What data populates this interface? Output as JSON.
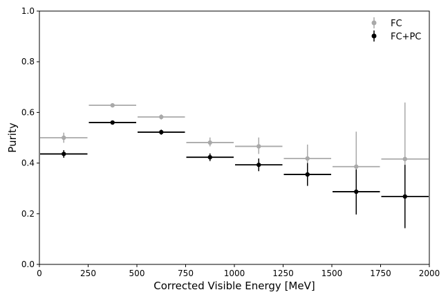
{
  "chart_data": {
    "type": "scatter",
    "subtype": "errorbar-histogram",
    "title": "",
    "xlabel": "Corrected Visible Energy [MeV]",
    "ylabel": "Purity",
    "xlim": [
      0,
      2000
    ],
    "ylim": [
      0.0,
      1.0
    ],
    "xticks": [
      "0",
      "250",
      "500",
      "750",
      "1000",
      "1250",
      "1500",
      "1750",
      "2000"
    ],
    "yticks": [
      "0.0",
      "0.2",
      "0.4",
      "0.6",
      "0.8",
      "1.0"
    ],
    "xtick_values": [
      0,
      250,
      500,
      750,
      1000,
      1250,
      1500,
      1750,
      2000
    ],
    "ytick_values": [
      0.0,
      0.2,
      0.4,
      0.6,
      0.8,
      1.0
    ],
    "grid": false,
    "legend_position": "top-right",
    "bin_edges": [
      0,
      250,
      500,
      750,
      1000,
      1250,
      1500,
      1750,
      2000
    ],
    "x": [
      125,
      375,
      625,
      875,
      1125,
      1375,
      1625,
      1875
    ],
    "series": [
      {
        "name": "FC",
        "color": "#a9a9a9",
        "values": [
          0.5,
          0.628,
          0.582,
          0.481,
          0.466,
          0.418,
          0.386,
          0.416
        ],
        "yerr_low": [
          0.02,
          0.008,
          0.01,
          0.015,
          0.03,
          0.05,
          0.14,
          0.2
        ],
        "yerr_high": [
          0.02,
          0.008,
          0.01,
          0.02,
          0.035,
          0.055,
          0.138,
          0.223
        ]
      },
      {
        "name": "FC+PC",
        "color": "#000000",
        "values": [
          0.436,
          0.56,
          0.522,
          0.423,
          0.393,
          0.355,
          0.287,
          0.268
        ],
        "yerr_low": [
          0.015,
          0.007,
          0.01,
          0.015,
          0.025,
          0.045,
          0.09,
          0.125
        ],
        "yerr_high": [
          0.015,
          0.007,
          0.01,
          0.015,
          0.025,
          0.045,
          0.088,
          0.125
        ]
      }
    ]
  }
}
